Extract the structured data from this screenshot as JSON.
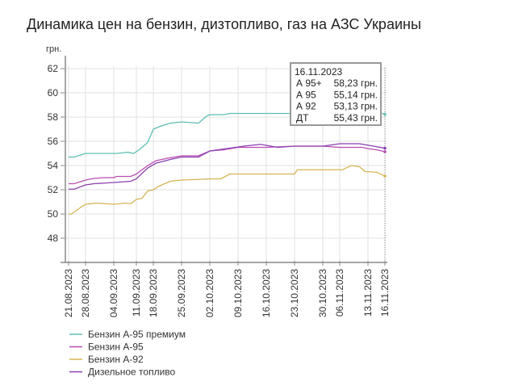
{
  "title": "Динамика цен на бензин, дизтопливо, газ на АЗС Украины",
  "chart_data": {
    "type": "line",
    "title": "Динамика цен на бензин, дизтопливо, газ на АЗС Украины",
    "ylabel": "грн.",
    "xlabel": "",
    "ylim": [
      46,
      63
    ],
    "xlim": [
      0,
      112
    ],
    "yticks": [
      48,
      50,
      52,
      54,
      56,
      58,
      60,
      62
    ],
    "xticks": [
      {
        "x": 0,
        "label": "21.08.2023"
      },
      {
        "x": 6,
        "label": "28.08.2023"
      },
      {
        "x": 16,
        "label": "04.09.2023"
      },
      {
        "x": 24,
        "label": "11.09.2023"
      },
      {
        "x": 30,
        "label": "18.09.2023"
      },
      {
        "x": 40,
        "label": "25.09.2023"
      },
      {
        "x": 50,
        "label": "02.10.2023"
      },
      {
        "x": 60,
        "label": "09.10.2023"
      },
      {
        "x": 70,
        "label": "16.10.2023"
      },
      {
        "x": 80,
        "label": "23.10.2023"
      },
      {
        "x": 90,
        "label": "30.10.2023"
      },
      {
        "x": 96,
        "label": "06.11.2023"
      },
      {
        "x": 106,
        "label": "13.11.2023"
      },
      {
        "x": 112,
        "label": "16.11.2023"
      }
    ],
    "grid": true,
    "legend_position": "bottom-left",
    "series": [
      {
        "name": "Бензин А-95 премиум",
        "color": "#5dbfb2",
        "points": [
          [
            0,
            54.7
          ],
          [
            2,
            54.7
          ],
          [
            6,
            55.0
          ],
          [
            17,
            55.0
          ],
          [
            21,
            55.1
          ],
          [
            23,
            55.0
          ],
          [
            25,
            55.3
          ],
          [
            28,
            55.9
          ],
          [
            30,
            57.0
          ],
          [
            32,
            57.2
          ],
          [
            36,
            57.5
          ],
          [
            40,
            57.6
          ],
          [
            46,
            57.5
          ],
          [
            49,
            58.1
          ],
          [
            50,
            58.2
          ],
          [
            55,
            58.2
          ],
          [
            57,
            58.3
          ],
          [
            111,
            58.3
          ],
          [
            112,
            58.23
          ]
        ]
      },
      {
        "name": "Бензин А-95",
        "color": "#b94cb0",
        "points": [
          [
            0,
            52.5
          ],
          [
            2,
            52.5
          ],
          [
            6,
            52.8
          ],
          [
            8,
            52.9
          ],
          [
            12,
            53.0
          ],
          [
            16,
            53.0
          ],
          [
            17,
            53.1
          ],
          [
            22,
            53.1
          ],
          [
            24,
            53.3
          ],
          [
            28,
            54.0
          ],
          [
            31,
            54.4
          ],
          [
            35,
            54.6
          ],
          [
            40,
            54.8
          ],
          [
            46,
            54.8
          ],
          [
            50,
            55.2
          ],
          [
            55,
            55.3
          ],
          [
            60,
            55.5
          ],
          [
            70,
            55.5
          ],
          [
            80,
            55.6
          ],
          [
            90,
            55.6
          ],
          [
            96,
            55.5
          ],
          [
            104,
            55.5
          ],
          [
            106,
            55.4
          ],
          [
            109,
            55.3
          ],
          [
            112,
            55.14
          ]
        ]
      },
      {
        "name": "Бензин А-92",
        "color": "#d6b455",
        "points": [
          [
            0,
            50.0
          ],
          [
            1,
            50.0
          ],
          [
            4,
            50.5
          ],
          [
            6,
            50.8
          ],
          [
            10,
            50.9
          ],
          [
            16,
            50.8
          ],
          [
            20,
            50.9
          ],
          [
            22,
            50.85
          ],
          [
            24,
            51.2
          ],
          [
            26,
            51.3
          ],
          [
            28,
            51.9
          ],
          [
            30,
            52.0
          ],
          [
            32,
            52.3
          ],
          [
            36,
            52.7
          ],
          [
            40,
            52.8
          ],
          [
            46,
            52.85
          ],
          [
            50,
            52.9
          ],
          [
            54,
            52.9
          ],
          [
            57,
            53.3
          ],
          [
            80,
            53.3
          ],
          [
            81,
            53.65
          ],
          [
            97,
            53.65
          ],
          [
            100,
            54.0
          ],
          [
            103,
            53.9
          ],
          [
            105,
            53.5
          ],
          [
            109,
            53.45
          ],
          [
            112,
            53.13
          ]
        ]
      },
      {
        "name": "Дизельное топливо",
        "color": "#8a3fb0",
        "points": [
          [
            0,
            52.05
          ],
          [
            2,
            52.05
          ],
          [
            6,
            52.4
          ],
          [
            9,
            52.5
          ],
          [
            16,
            52.6
          ],
          [
            22,
            52.7
          ],
          [
            24,
            52.9
          ],
          [
            28,
            53.8
          ],
          [
            31,
            54.2
          ],
          [
            36,
            54.5
          ],
          [
            40,
            54.7
          ],
          [
            46,
            54.7
          ],
          [
            50,
            55.2
          ],
          [
            56,
            55.4
          ],
          [
            62,
            55.6
          ],
          [
            68,
            55.75
          ],
          [
            74,
            55.5
          ],
          [
            80,
            55.6
          ],
          [
            90,
            55.6
          ],
          [
            96,
            55.8
          ],
          [
            103,
            55.8
          ],
          [
            108,
            55.6
          ],
          [
            112,
            55.43
          ]
        ]
      }
    ],
    "tooltip": {
      "date": "16.11.2023",
      "rows": [
        {
          "label": "А 95+",
          "value": "58,23 грн."
        },
        {
          "label": "А 95",
          "value": "55,14 грн."
        },
        {
          "label": "А 92",
          "value": "53,13 грн."
        },
        {
          "label": "ДТ",
          "value": "55,43 грн."
        }
      ]
    }
  }
}
